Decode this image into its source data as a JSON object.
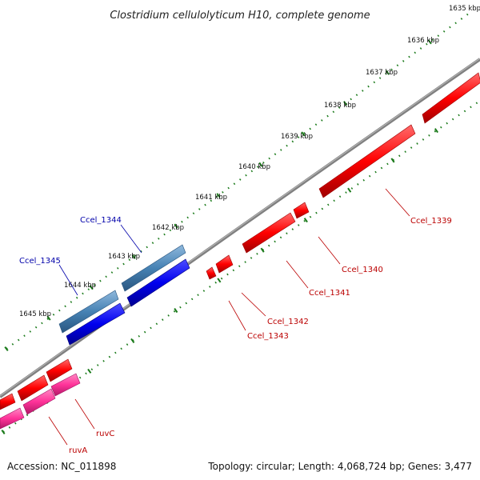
{
  "title": "Clostridium cellulolyticum H10, complete genome",
  "footer": {
    "accession": "Accession: NC_011898",
    "summary": "Topology: circular; Length: 4,068,724 bp; Genes: 3,477"
  },
  "ticks": [
    "1635 kbp",
    "1636 kbp",
    "1637 kbp",
    "1638 kbp",
    "1639 kbp",
    "1640 kbp",
    "1641 kbp",
    "1642 kbp",
    "1643 kbp",
    "1644 kbp",
    "1645 kbp"
  ],
  "genes": {
    "forward": [
      "Ccel_1344",
      "Ccel_1345"
    ],
    "reverse": [
      "Ccel_1339",
      "Ccel_1340",
      "Ccel_1341",
      "Ccel_1342",
      "Ccel_1343",
      "ruvC",
      "ruvA"
    ]
  },
  "colors": {
    "backbone": "#808080",
    "tick": "#1a7a1a",
    "reverse_gene": "#ff0000",
    "reverse_gene_dark": "#b00000",
    "forward_gene": "#4682b4",
    "forward_gene_dark": "#27507a",
    "forward_cds": "#0000ee",
    "reverse_cds_pink": "#ff3399",
    "forward_label": "#0000aa",
    "reverse_label": "#bb0000"
  }
}
